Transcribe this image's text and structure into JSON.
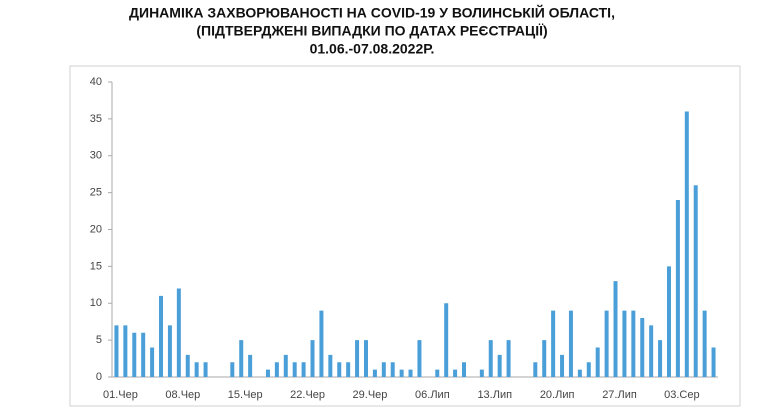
{
  "chart_data": {
    "type": "bar",
    "title": [
      "ДИНАМІКА ЗАХВОРЮВАНОСТІ НА  COVID-19 У ВОЛИНСЬКІЙ ОБЛАСТІ,",
      "(ПІДТВЕРДЖЕНІ ВИПАДКИ ПО ДАТАХ РЕЄСТРАЦІЇ)",
      "01.06.-07.08.2022Р."
    ],
    "categories": [
      "01.Чер",
      null,
      null,
      null,
      null,
      null,
      null,
      "08.Чер",
      null,
      null,
      null,
      null,
      null,
      null,
      "15.Чер",
      null,
      null,
      null,
      null,
      null,
      null,
      "22.Чер",
      null,
      null,
      null,
      null,
      null,
      null,
      "29.Чер",
      null,
      null,
      null,
      null,
      null,
      null,
      "06.Лип",
      null,
      null,
      null,
      null,
      null,
      null,
      "13.Лип",
      null,
      null,
      null,
      null,
      null,
      null,
      "20.Лип",
      null,
      null,
      null,
      null,
      null,
      null,
      "27.Лип",
      null,
      null,
      null,
      null,
      null,
      null,
      "03.Сер",
      null,
      null,
      null,
      null
    ],
    "values": [
      7,
      7,
      6,
      6,
      4,
      11,
      7,
      12,
      3,
      2,
      2,
      0,
      0,
      2,
      5,
      3,
      0,
      1,
      2,
      3,
      2,
      2,
      5,
      9,
      3,
      2,
      2,
      5,
      5,
      1,
      2,
      2,
      1,
      1,
      5,
      0,
      1,
      10,
      1,
      2,
      0,
      1,
      5,
      3,
      5,
      0,
      0,
      2,
      5,
      9,
      3,
      9,
      1,
      2,
      4,
      9,
      13,
      9,
      9,
      8,
      7,
      5,
      15,
      24,
      36,
      26,
      9,
      4
    ],
    "color": "#4a9fd8",
    "ylim": [
      0,
      40
    ],
    "yticks": [
      0,
      5,
      10,
      15,
      20,
      25,
      30,
      35,
      40
    ],
    "grid": false
  }
}
